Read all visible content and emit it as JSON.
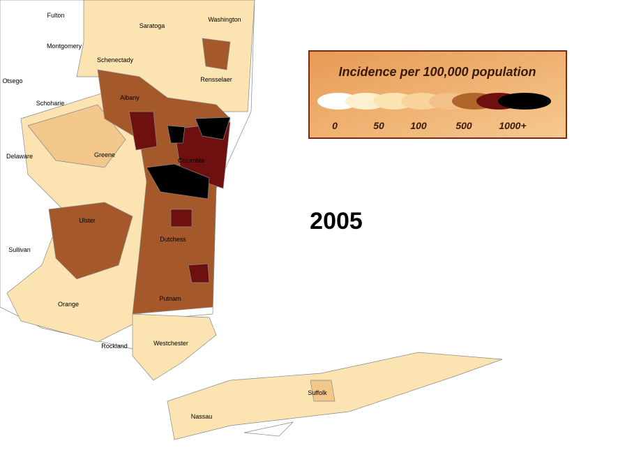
{
  "title": "2005",
  "legend": {
    "title": "Incidence per 100,000 population",
    "labels": [
      "0",
      "50",
      "100",
      "500",
      "1000+"
    ]
  },
  "counties": [
    {
      "label": "Fulton"
    },
    {
      "label": "Saratoga"
    },
    {
      "label": "Washington"
    },
    {
      "label": "Montgomery"
    },
    {
      "label": "Schenectady"
    },
    {
      "label": "Otsego"
    },
    {
      "label": "Rensselaer"
    },
    {
      "label": "Albany"
    },
    {
      "label": "Schoharie"
    },
    {
      "label": "Delaware"
    },
    {
      "label": "Greene"
    },
    {
      "label": "Columbia"
    },
    {
      "label": "Ulster"
    },
    {
      "label": "Dutchess"
    },
    {
      "label": "Sullivan"
    },
    {
      "label": "Orange"
    },
    {
      "label": "Putnam"
    },
    {
      "label": "Rockland"
    },
    {
      "label": "Westchester"
    },
    {
      "label": "Suffolk"
    },
    {
      "label": "Nassau"
    }
  ]
}
